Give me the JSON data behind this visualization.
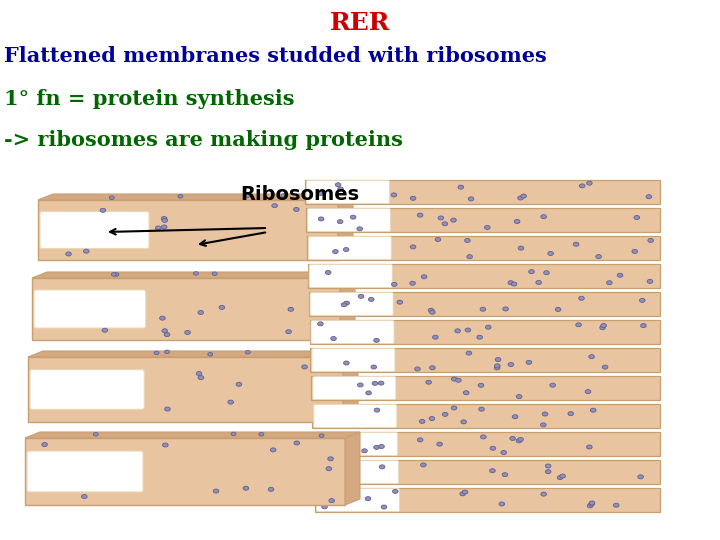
{
  "title": "RER",
  "title_color": "#cc0000",
  "title_fontsize": 18,
  "line1": "Flattened membranes studded with ribosomes",
  "line1_color": "#000099",
  "line1_fontsize": 15,
  "line2": "1° fn = protein synthesis",
  "line2_color": "#006600",
  "line2_fontsize": 15,
  "line3": "-> ribosomes are making proteins",
  "line3_color": "#006600",
  "line3_fontsize": 15,
  "background_color": "#ffffff",
  "membrane_fill": "#E8C4A0",
  "membrane_edge": "#C8A070",
  "membrane_dark": "#D4A880",
  "membrane_inner_edge": "#E8D8B8",
  "ribosome_fill": "#9090B8",
  "ribosome_edge": "#606090",
  "ribosome_label": "Ribosomes",
  "ribosome_label_fontsize": 14
}
